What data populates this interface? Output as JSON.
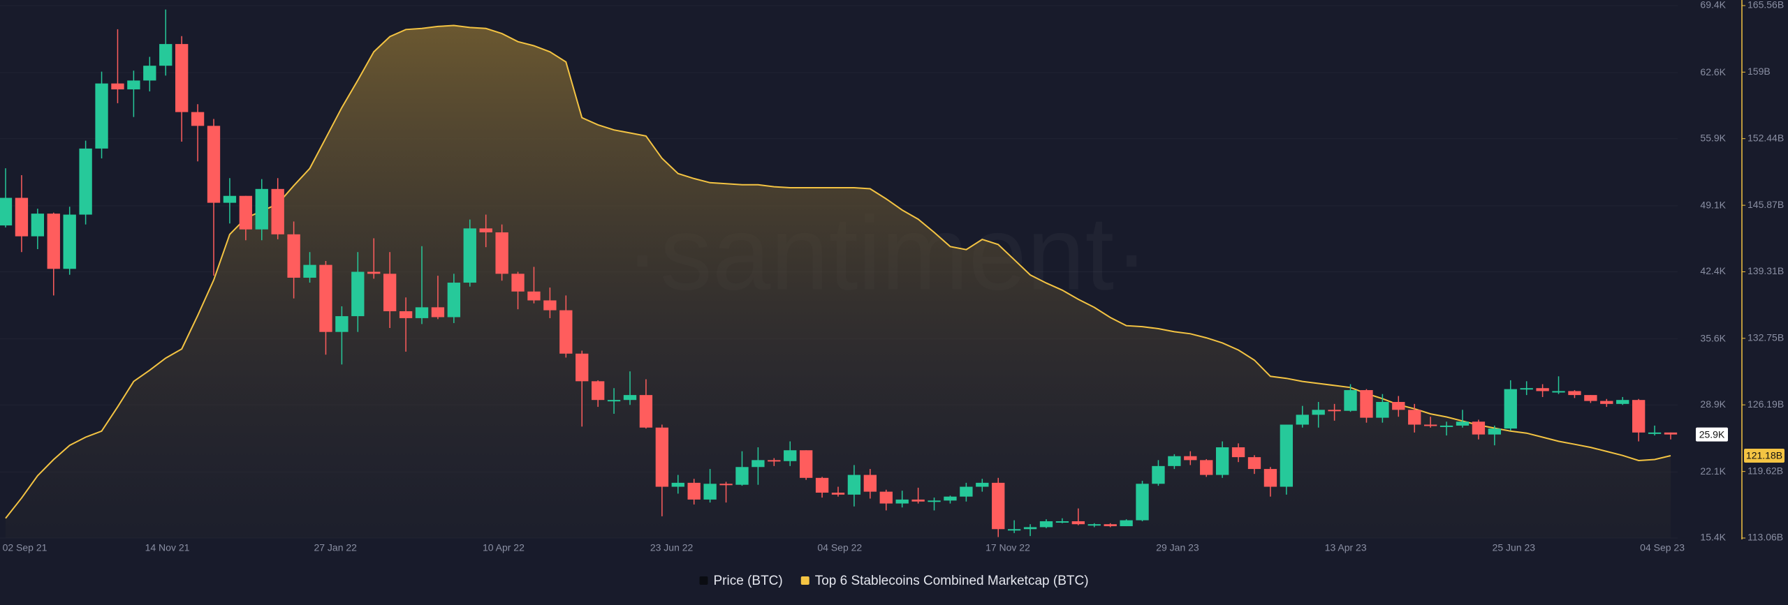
{
  "chart_data": {
    "type": "candlestick",
    "watermark": "·santiment·",
    "ylim": [
      15.4,
      69.4
    ],
    "yticks": [
      {
        "value": 15.4,
        "label": "15.4K"
      },
      {
        "value": 22.1,
        "label": "22.1K"
      },
      {
        "value": 28.9,
        "label": "28.9K"
      },
      {
        "value": 35.6,
        "label": "35.6K"
      },
      {
        "value": 42.4,
        "label": "42.4K"
      },
      {
        "value": 49.1,
        "label": "49.1K"
      },
      {
        "value": 55.9,
        "label": "55.9K"
      },
      {
        "value": 62.6,
        "label": "62.6K"
      },
      {
        "value": 69.4,
        "label": "69.4K"
      }
    ],
    "y2lim": [
      113.06,
      165.56
    ],
    "y2ticks": [
      {
        "value": 113.06,
        "label": "113.06B"
      },
      {
        "value": 119.62,
        "label": "119.62B"
      },
      {
        "value": 126.19,
        "label": "126.19B"
      },
      {
        "value": 132.75,
        "label": "132.75B"
      },
      {
        "value": 139.31,
        "label": "139.31B"
      },
      {
        "value": 145.87,
        "label": "145.87B"
      },
      {
        "value": 152.44,
        "label": "152.44B"
      },
      {
        "value": 159,
        "label": "159B"
      },
      {
        "value": 165.56,
        "label": "165.56B"
      }
    ],
    "xlim": [
      0,
      104
    ],
    "xticks": [
      {
        "value": 1.2,
        "label": "02 Sep 21"
      },
      {
        "value": 10.1,
        "label": "14 Nov 21"
      },
      {
        "value": 20.6,
        "label": "27 Jan 22"
      },
      {
        "value": 31.1,
        "label": "10 Apr 22"
      },
      {
        "value": 41.6,
        "label": "23 Jun 22"
      },
      {
        "value": 52.1,
        "label": "04 Sep 22"
      },
      {
        "value": 62.6,
        "label": "17 Nov 22"
      },
      {
        "value": 73.2,
        "label": "29 Jan 23"
      },
      {
        "value": 83.7,
        "label": "13 Apr 23"
      },
      {
        "value": 94.2,
        "label": "25 Jun 23"
      },
      {
        "value": 104.5,
        "label": "04 Sep 23"
      }
    ],
    "grid": true,
    "series": [
      {
        "name": "Price (BTC)",
        "type": "candlestick",
        "color": "#0a0c12",
        "up_color": "#26c99a",
        "down_color": "#ff5d5d",
        "current_label": "25.9K",
        "open": [
          47.1,
          49.9,
          46.0,
          48.3,
          42.7,
          48.2,
          54.9,
          61.5,
          60.9,
          61.8,
          63.3,
          65.5,
          58.6,
          57.2,
          49.4,
          50.1,
          46.7,
          50.8,
          46.2,
          41.8,
          43.1,
          36.3,
          37.9,
          42.4,
          42.2,
          38.4,
          37.7,
          38.8,
          37.8,
          41.3,
          46.8,
          46.4,
          42.2,
          40.4,
          39.5,
          38.5,
          34.1,
          31.3,
          29.4,
          29.4,
          29.9,
          26.6,
          20.6,
          21.0,
          19.3,
          20.9,
          20.8,
          22.6,
          23.3,
          23.2,
          24.3,
          21.5,
          20.0,
          19.8,
          21.8,
          20.1,
          18.9,
          19.3,
          19.1,
          19.2,
          19.6,
          20.6,
          21.0,
          16.3,
          16.3,
          16.5,
          17.1,
          17.1,
          16.8,
          16.8,
          16.6,
          17.2,
          20.9,
          22.7,
          23.7,
          23.3,
          21.8,
          24.6,
          23.6,
          22.4,
          20.6,
          26.9,
          27.9,
          28.4,
          28.3,
          30.4,
          27.6,
          29.2,
          28.4,
          26.9,
          26.8,
          26.8,
          27.2,
          25.9,
          26.5,
          30.5,
          30.6,
          30.3,
          30.3,
          29.9,
          29.3,
          29.0,
          29.4,
          26.1,
          26.1
        ],
        "high": [
          52.9,
          52.2,
          48.8,
          48.4,
          49.0,
          55.7,
          62.7,
          67.0,
          62.8,
          64.2,
          69.0,
          66.3,
          59.4,
          57.9,
          51.9,
          50.1,
          51.8,
          51.9,
          47.5,
          44.4,
          43.5,
          38.9,
          44.4,
          45.8,
          44.4,
          39.8,
          45.0,
          42.0,
          42.2,
          47.7,
          48.2,
          47.2,
          42.4,
          42.9,
          40.8,
          40.0,
          34.4,
          31.4,
          30.6,
          32.3,
          31.5,
          26.9,
          21.8,
          21.4,
          22.4,
          21.1,
          24.2,
          24.6,
          23.5,
          25.2,
          24.3,
          21.6,
          20.6,
          22.8,
          22.4,
          20.3,
          20.2,
          20.5,
          19.5,
          19.7,
          21.0,
          21.4,
          21.5,
          17.2,
          16.8,
          17.3,
          17.4,
          18.4,
          16.9,
          16.9,
          17.3,
          21.2,
          23.3,
          23.9,
          24.2,
          23.4,
          25.2,
          25.0,
          23.8,
          22.6,
          26.9,
          28.8,
          29.2,
          29.0,
          31.0,
          30.5,
          30.0,
          29.8,
          29.0,
          27.7,
          27.2,
          28.4,
          27.4,
          26.8,
          31.4,
          31.3,
          31.0,
          31.8,
          30.4,
          29.9,
          29.5,
          29.7,
          29.5,
          26.8,
          26.1
        ],
        "low": [
          46.9,
          44.4,
          44.7,
          40.0,
          42.1,
          47.2,
          53.9,
          59.5,
          58.1,
          60.7,
          62.3,
          55.6,
          53.6,
          42.0,
          47.3,
          45.6,
          45.6,
          45.7,
          39.7,
          41.3,
          34.0,
          33.0,
          36.3,
          41.7,
          36.7,
          34.3,
          37.1,
          37.6,
          37.2,
          40.9,
          44.9,
          41.5,
          38.6,
          39.2,
          37.7,
          33.7,
          26.7,
          28.7,
          28.0,
          28.9,
          26.5,
          17.6,
          19.9,
          18.8,
          19.0,
          19.0,
          20.7,
          20.8,
          22.7,
          22.7,
          21.3,
          19.5,
          19.6,
          18.6,
          19.4,
          18.2,
          18.5,
          18.9,
          18.2,
          18.9,
          19.1,
          20.1,
          15.5,
          15.9,
          15.6,
          16.4,
          16.9,
          16.7,
          16.5,
          16.5,
          16.6,
          17.1,
          20.7,
          22.4,
          22.8,
          21.6,
          21.5,
          23.1,
          21.9,
          19.6,
          19.8,
          26.6,
          26.6,
          27.3,
          28.2,
          27.1,
          27.1,
          27.7,
          26.1,
          26.6,
          25.8,
          26.6,
          25.4,
          24.8,
          26.3,
          29.9,
          29.7,
          30.0,
          29.6,
          29.1,
          28.7,
          28.9,
          25.2,
          25.8,
          25.4
        ],
        "close": [
          49.9,
          46.0,
          48.3,
          42.7,
          48.2,
          54.9,
          61.5,
          60.9,
          61.8,
          63.3,
          65.5,
          58.6,
          57.2,
          49.4,
          50.1,
          46.7,
          50.8,
          46.2,
          41.8,
          43.1,
          36.3,
          37.9,
          42.4,
          42.2,
          38.4,
          37.7,
          38.8,
          37.8,
          41.3,
          46.8,
          46.4,
          42.2,
          40.4,
          39.5,
          38.5,
          34.1,
          31.3,
          29.4,
          29.4,
          29.9,
          26.6,
          20.6,
          21.0,
          19.3,
          20.9,
          20.8,
          22.6,
          23.3,
          23.2,
          24.3,
          21.5,
          20.0,
          19.8,
          21.8,
          20.1,
          18.9,
          19.3,
          19.1,
          19.2,
          19.6,
          20.6,
          21.0,
          16.3,
          16.3,
          16.5,
          17.1,
          17.1,
          16.8,
          16.8,
          16.6,
          17.2,
          20.9,
          22.7,
          23.7,
          23.3,
          21.8,
          24.6,
          23.6,
          22.4,
          20.6,
          26.9,
          27.9,
          28.4,
          28.3,
          30.4,
          27.6,
          29.2,
          28.4,
          26.9,
          26.8,
          26.8,
          27.2,
          25.9,
          26.5,
          30.5,
          30.6,
          30.3,
          30.3,
          29.9,
          29.3,
          29.0,
          29.4,
          26.1,
          26.1,
          25.9
        ]
      },
      {
        "name": "Top 6 Stablecoins Combined Marketcap (BTC)",
        "type": "area",
        "axis": "y2",
        "color": "#f4c443",
        "current_label": "121.18B",
        "values": [
          115.0,
          117.0,
          119.2,
          120.8,
          122.2,
          123.0,
          123.6,
          126.0,
          128.5,
          129.6,
          130.8,
          131.7,
          135.0,
          138.5,
          143.0,
          144.6,
          145.3,
          146.0,
          147.8,
          149.5,
          152.5,
          155.5,
          158.2,
          161.0,
          162.5,
          163.2,
          163.3,
          163.5,
          163.6,
          163.4,
          163.3,
          162.8,
          162.0,
          161.6,
          161.0,
          160.0,
          154.5,
          153.8,
          153.3,
          153.0,
          152.7,
          150.5,
          149.0,
          148.5,
          148.1,
          148.0,
          147.9,
          147.9,
          147.7,
          147.6,
          147.6,
          147.6,
          147.6,
          147.6,
          147.5,
          146.5,
          145.4,
          144.5,
          143.2,
          141.8,
          141.5,
          142.5,
          142.0,
          140.5,
          139.0,
          138.2,
          137.5,
          136.6,
          135.8,
          134.8,
          134.0,
          133.9,
          133.7,
          133.4,
          133.2,
          132.8,
          132.3,
          131.6,
          130.6,
          129.0,
          128.8,
          128.5,
          128.3,
          128.1,
          127.9,
          127.3,
          126.8,
          126.2,
          125.8,
          125.3,
          125.0,
          124.6,
          124.2,
          123.9,
          123.6,
          123.4,
          123.0,
          122.6,
          122.3,
          122.0,
          121.6,
          121.2,
          120.7,
          120.8,
          121.18
        ]
      }
    ]
  }
}
